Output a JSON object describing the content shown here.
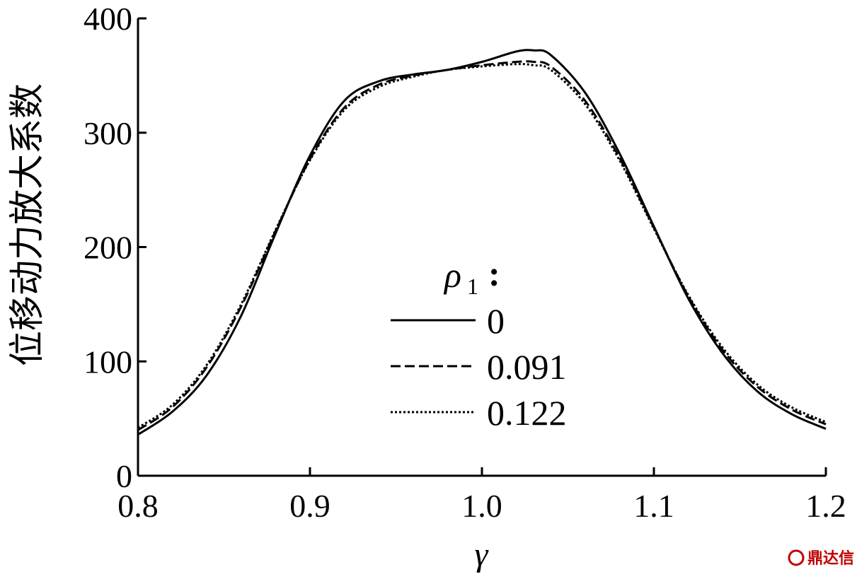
{
  "chart_data": {
    "type": "line",
    "title": "",
    "xlabel": "γ",
    "ylabel": "位移动力放大系数",
    "xlim": [
      0.8,
      1.2
    ],
    "ylim": [
      0,
      400
    ],
    "xticks": [
      "0.8",
      "0.9",
      "1.0",
      "1.1",
      "1.2"
    ],
    "yticks": [
      "0",
      "100",
      "200",
      "300",
      "400"
    ],
    "grid": false,
    "legend": {
      "title_symbol": "ρ",
      "title_subscript": "1",
      "title_suffix": ":",
      "placement": "center"
    },
    "series": [
      {
        "name": "0",
        "style": "solid",
        "x": [
          0.8,
          0.82,
          0.84,
          0.86,
          0.88,
          0.9,
          0.92,
          0.94,
          0.96,
          0.98,
          1.0,
          1.02,
          1.03,
          1.04,
          1.06,
          1.08,
          1.1,
          1.12,
          1.14,
          1.16,
          1.18,
          1.2
        ],
        "y": [
          36,
          56,
          88,
          140,
          212,
          280,
          328,
          345,
          351,
          355,
          362,
          371,
          372,
          368,
          335,
          282,
          218,
          155,
          107,
          74,
          54,
          41
        ]
      },
      {
        "name": "0.091",
        "style": "dashed",
        "x": [
          0.8,
          0.82,
          0.84,
          0.86,
          0.88,
          0.9,
          0.92,
          0.94,
          0.96,
          0.98,
          1.0,
          1.02,
          1.03,
          1.04,
          1.06,
          1.08,
          1.1,
          1.12,
          1.14,
          1.16,
          1.18,
          1.2
        ],
        "y": [
          40,
          60,
          95,
          148,
          214,
          277,
          322,
          342,
          350,
          355,
          359,
          362,
          362,
          358,
          328,
          278,
          217,
          157,
          110,
          78,
          58,
          45
        ]
      },
      {
        "name": "0.122",
        "style": "dotted",
        "x": [
          0.8,
          0.82,
          0.84,
          0.86,
          0.88,
          0.9,
          0.92,
          0.94,
          0.96,
          0.98,
          1.0,
          1.02,
          1.03,
          1.04,
          1.06,
          1.08,
          1.1,
          1.12,
          1.14,
          1.16,
          1.18,
          1.2
        ],
        "y": [
          42,
          62,
          97,
          150,
          215,
          276,
          320,
          340,
          349,
          355,
          358,
          360,
          359,
          355,
          325,
          276,
          216,
          158,
          112,
          80,
          60,
          47
        ]
      }
    ]
  },
  "watermark": {
    "text": "鼎达信",
    "color": "#c00000"
  }
}
